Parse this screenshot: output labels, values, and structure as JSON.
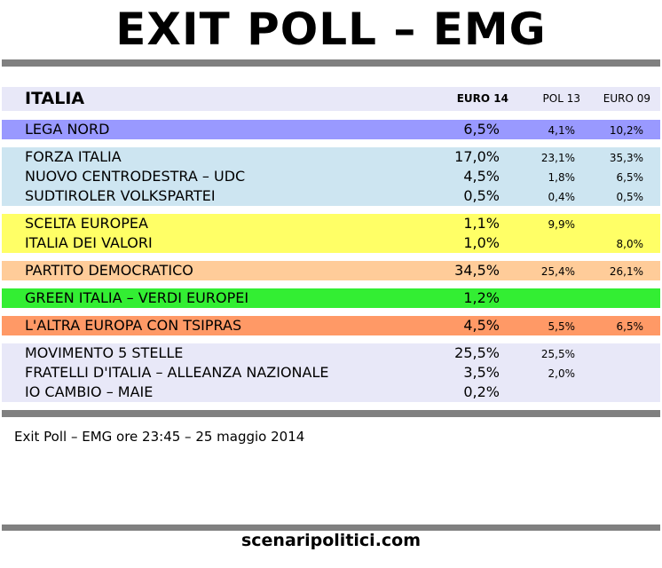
{
  "title": "EXIT POLL – EMG",
  "header": {
    "label": "ITALIA",
    "columns": [
      "EURO 14",
      "POL 13",
      "EURO 09"
    ]
  },
  "groups": [
    {
      "color": "#9999ff",
      "rows": [
        [
          "LEGA NORD",
          "6,5%",
          "4,1%",
          "10,2%"
        ]
      ]
    },
    {
      "color": "#cde5f1",
      "rows": [
        [
          "FORZA ITALIA",
          "17,0%",
          "23,1%",
          "35,3%"
        ],
        [
          "NUOVO CENTRODESTRA – UDC",
          "4,5%",
          "1,8%",
          "6,5%"
        ],
        [
          "SUDTIROLER VOLKSPARTEI",
          "0,5%",
          "0,4%",
          "0,5%"
        ]
      ]
    },
    {
      "color": "#ffff66",
      "rows": [
        [
          "SCELTA EUROPEA",
          "1,1%",
          "9,9%",
          null
        ],
        [
          "ITALIA DEI VALORI",
          "1,0%",
          null,
          "8,0%"
        ]
      ]
    },
    {
      "color": "#ffcc99",
      "rows": [
        [
          "PARTITO DEMOCRATICO",
          "34,5%",
          "25,4%",
          "26,1%"
        ]
      ]
    },
    {
      "color": "#33ee33",
      "rows": [
        [
          "GREEN ITALIA – VERDI EUROPEI",
          "1,2%",
          null,
          null
        ]
      ]
    },
    {
      "color": "#ff9966",
      "rows": [
        [
          "L'ALTRA EUROPA CON TSIPRAS",
          "4,5%",
          "5,5%",
          "6,5%"
        ]
      ]
    },
    {
      "color": "#e8e8f8",
      "rows": [
        [
          "MOVIMENTO 5 STELLE",
          "25,5%",
          "25,5%",
          null
        ],
        [
          "FRATELLI D'ITALIA – ALLEANZA NAZIONALE",
          "3,5%",
          "2,0%",
          null
        ],
        [
          "IO CAMBIO – MAIE",
          "0,2%",
          null,
          null
        ]
      ]
    }
  ],
  "footer": "Exit Poll – EMG ore 23:45 – 25 maggio 2014",
  "site": "scenaripolitici.com"
}
